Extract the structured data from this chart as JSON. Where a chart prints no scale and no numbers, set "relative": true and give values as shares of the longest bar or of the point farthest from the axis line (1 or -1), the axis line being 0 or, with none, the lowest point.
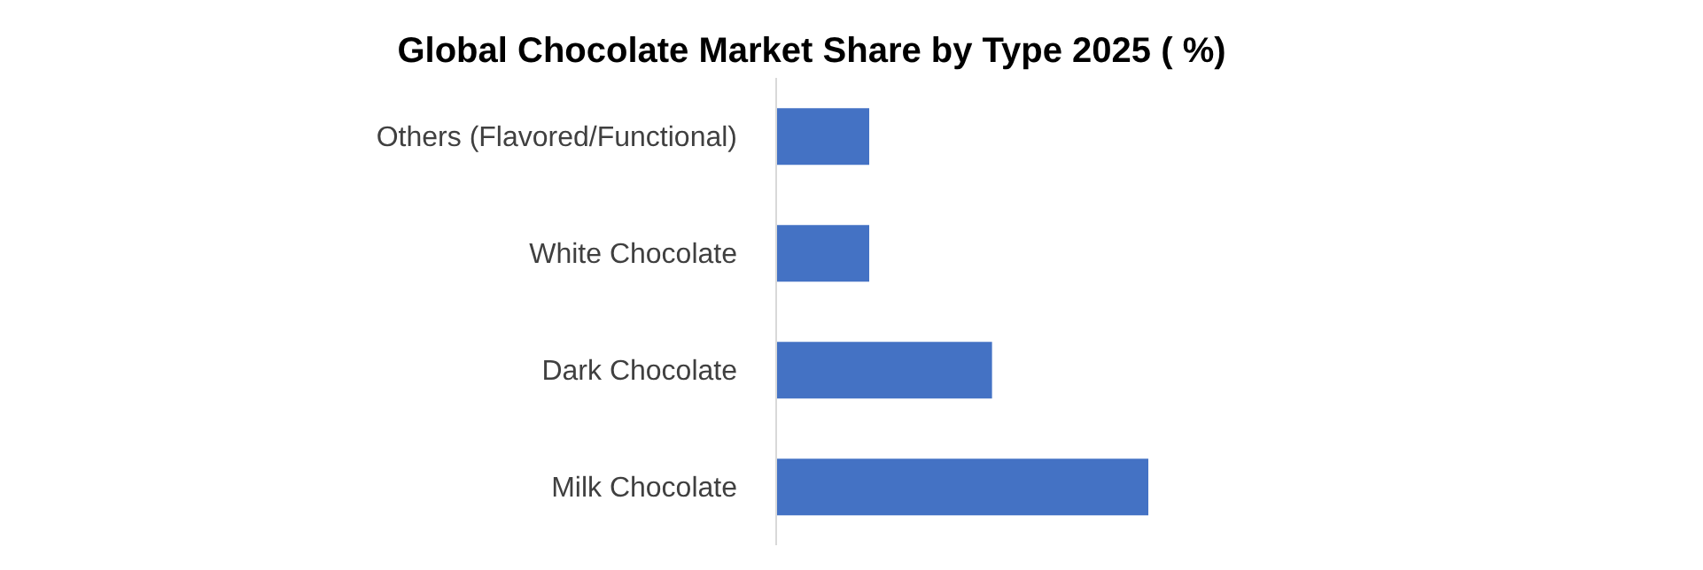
{
  "chart_data": {
    "type": "bar",
    "orientation": "horizontal",
    "relative": true,
    "title": "Global Chocolate Market Share by Type 2025 ( %)",
    "categories": [
      "Others (Flavored/Functional)",
      "White Chocolate",
      "Dark Chocolate",
      "Milk Chocolate"
    ],
    "values": [
      0.25,
      0.25,
      0.58,
      1
    ],
    "color": "#4472c4",
    "grid": false,
    "legend": false
  }
}
